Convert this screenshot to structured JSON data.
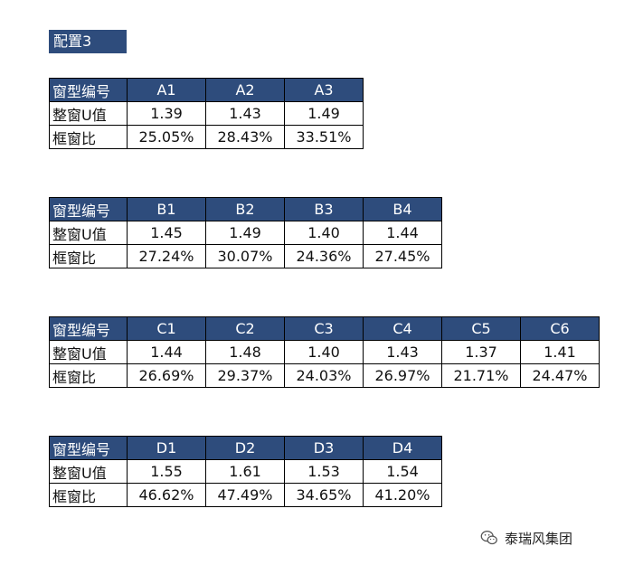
{
  "title": "配置3",
  "row_labels": {
    "header": "窗型编号",
    "u_value": "整窗U值",
    "frame_ratio": "框窗比"
  },
  "tables": [
    {
      "ids": [
        "A1",
        "A2",
        "A3"
      ],
      "u_values": [
        "1.39",
        "1.43",
        "1.49"
      ],
      "frame_ratios": [
        "25.05%",
        "28.43%",
        "33.51%"
      ]
    },
    {
      "ids": [
        "B1",
        "B2",
        "B3",
        "B4"
      ],
      "u_values": [
        "1.45",
        "1.49",
        "1.40",
        "1.44"
      ],
      "frame_ratios": [
        "27.24%",
        "30.07%",
        "24.36%",
        "27.45%"
      ]
    },
    {
      "ids": [
        "C1",
        "C2",
        "C3",
        "C4",
        "C5",
        "C6"
      ],
      "u_values": [
        "1.44",
        "1.48",
        "1.40",
        "1.43",
        "1.37",
        "1.41"
      ],
      "frame_ratios": [
        "26.69%",
        "29.37%",
        "24.03%",
        "26.97%",
        "21.71%",
        "24.47%"
      ]
    },
    {
      "ids": [
        "D1",
        "D2",
        "D3",
        "D4"
      ],
      "u_values": [
        "1.55",
        "1.61",
        "1.53",
        "1.54"
      ],
      "frame_ratios": [
        "46.62%",
        "47.49%",
        "34.65%",
        "41.20%"
      ]
    }
  ],
  "watermark": {
    "text": "泰瑞风集团",
    "icon": "wechat-icon"
  },
  "colors": {
    "header_bg": "#2e4c7c",
    "header_text": "#ffffff",
    "border": "#000000"
  }
}
